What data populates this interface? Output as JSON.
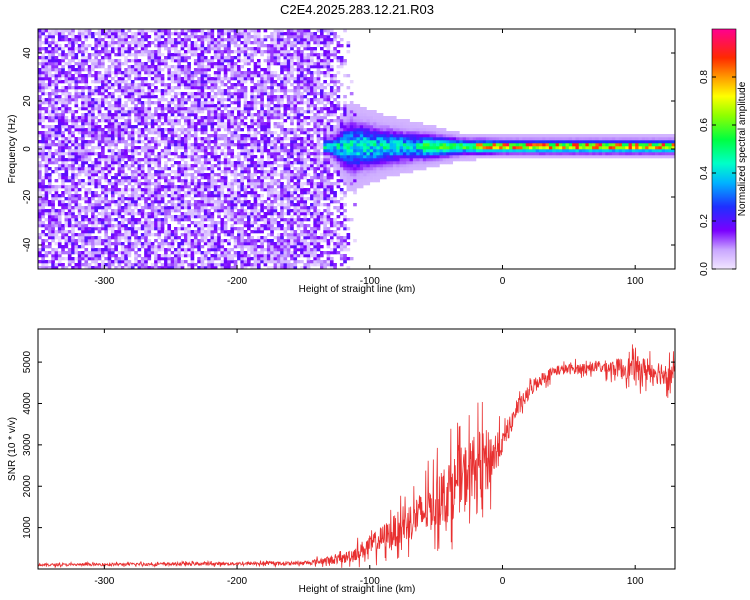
{
  "title": "C2E4.2025.283.12.21.R03",
  "chart_data": [
    {
      "type": "heatmap",
      "name": "spectrogram",
      "xlabel": "Height of straight line (km)",
      "ylabel": "Frequency (Hz)",
      "xlim": [
        -350,
        130
      ],
      "ylim": [
        -50,
        50
      ],
      "xticks": [
        -300,
        -200,
        -100,
        0,
        100
      ],
      "xtick_labels": [
        "-300",
        "-200",
        "-100",
        "0",
        "100"
      ],
      "yticks": [
        -40,
        -20,
        0,
        20,
        40
      ],
      "ytick_labels": [
        "-40",
        "-20",
        "0",
        "20",
        "40"
      ],
      "noise_region_end_km": -130,
      "tail_end_km": -110,
      "signal_band": [
        {
          "x": -130,
          "half_width_hz": 3
        },
        {
          "x": -115,
          "half_width_hz": 10
        },
        {
          "x": -90,
          "half_width_hz": 7
        },
        {
          "x": -60,
          "half_width_hz": 5
        },
        {
          "x": -30,
          "half_width_hz": 3
        },
        {
          "x": 0,
          "half_width_hz": 2.5
        },
        {
          "x": 130,
          "half_width_hz": 2.5
        }
      ],
      "peak_frequency_hz": 1,
      "colorbar": {
        "label": "Normalized spectral amplitude",
        "range": [
          0,
          1
        ],
        "ticks": [
          0.0,
          0.2,
          0.4,
          0.6,
          0.8
        ],
        "tick_labels": [
          "0.0",
          "0.2",
          "0.4",
          "0.6",
          "0.8"
        ]
      }
    },
    {
      "type": "line",
      "name": "snr",
      "color": "#e83030",
      "xlabel": "Height of straight line (km)",
      "ylabel": "SNR (10 * v/v)",
      "xlim": [
        -350,
        130
      ],
      "ylim": [
        0,
        5800
      ],
      "xticks": [
        -300,
        -200,
        -100,
        0,
        100
      ],
      "xtick_labels": [
        "-300",
        "-200",
        "-100",
        "0",
        "100"
      ],
      "yticks": [
        1000,
        2000,
        3000,
        4000,
        5000
      ],
      "ytick_labels": [
        "1000",
        "2000",
        "3000",
        "4000",
        "5000"
      ],
      "envelope": [
        {
          "x": -350,
          "base": 100,
          "amp": 60
        },
        {
          "x": -150,
          "base": 140,
          "amp": 80
        },
        {
          "x": -120,
          "base": 250,
          "amp": 250
        },
        {
          "x": -100,
          "base": 550,
          "amp": 500
        },
        {
          "x": -80,
          "base": 950,
          "amp": 800
        },
        {
          "x": -60,
          "base": 1350,
          "amp": 1100
        },
        {
          "x": -40,
          "base": 1900,
          "amp": 1500
        },
        {
          "x": -20,
          "base": 2500,
          "amp": 1600
        },
        {
          "x": -8,
          "base": 2700,
          "amp": 1400
        },
        {
          "x": 0,
          "base": 3050,
          "amp": 500
        },
        {
          "x": 10,
          "base": 3800,
          "amp": 400
        },
        {
          "x": 25,
          "base": 4500,
          "amp": 350
        },
        {
          "x": 40,
          "base": 4800,
          "amp": 250
        },
        {
          "x": 70,
          "base": 4880,
          "amp": 250
        },
        {
          "x": 100,
          "base": 4850,
          "amp": 600
        },
        {
          "x": 130,
          "base": 4700,
          "amp": 600
        }
      ]
    }
  ]
}
